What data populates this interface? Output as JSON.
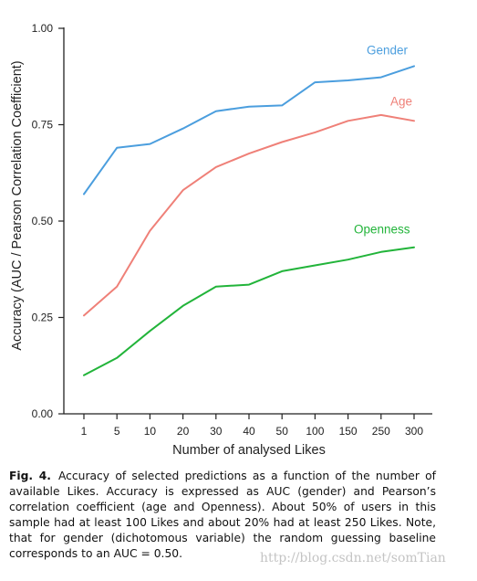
{
  "chart_data": {
    "type": "line",
    "categories": [
      "1",
      "5",
      "10",
      "20",
      "30",
      "40",
      "50",
      "100",
      "150",
      "250",
      "300"
    ],
    "xlabel": "Number of analysed Likes",
    "ylabel": "Accuracy (AUC / Pearson Correlation Coefficient)",
    "ylim": [
      0,
      1
    ],
    "yticks": [
      "0.00",
      "0.25",
      "0.50",
      "0.75",
      "1.00"
    ],
    "yticks_values": [
      0,
      0.25,
      0.5,
      0.75,
      1.0
    ],
    "grid": false,
    "legend": "inline labels at line ends",
    "series": [
      {
        "name": "Gender",
        "color": "#4b9ede",
        "values": [
          0.57,
          0.69,
          0.7,
          0.74,
          0.785,
          0.797,
          0.8,
          0.86,
          0.865,
          0.873,
          0.902
        ]
      },
      {
        "name": "Age",
        "color": "#ef8078",
        "values": [
          0.255,
          0.33,
          0.475,
          0.58,
          0.64,
          0.675,
          0.705,
          0.73,
          0.76,
          0.775,
          0.76
        ]
      },
      {
        "name": "Openness",
        "color": "#22b43a",
        "values": [
          0.1,
          0.145,
          0.215,
          0.28,
          0.33,
          0.335,
          0.37,
          0.385,
          0.4,
          0.42,
          0.432
        ]
      }
    ]
  },
  "caption": {
    "label": "Fig. 4.",
    "text": "Accuracy of selected predictions as a function of the number of available Likes. Accuracy is expressed as AUC (gender) and Pearson’s correlation coefficient (age and Openness). About 50% of users in this sample had at least 100 Likes and about 20% had at least 250 Likes. Note, that for gender (dichotomous variable) the random guessing baseline corresponds to an AUC = 0.50."
  },
  "watermark": "http://blog.csdn.net/somTian"
}
